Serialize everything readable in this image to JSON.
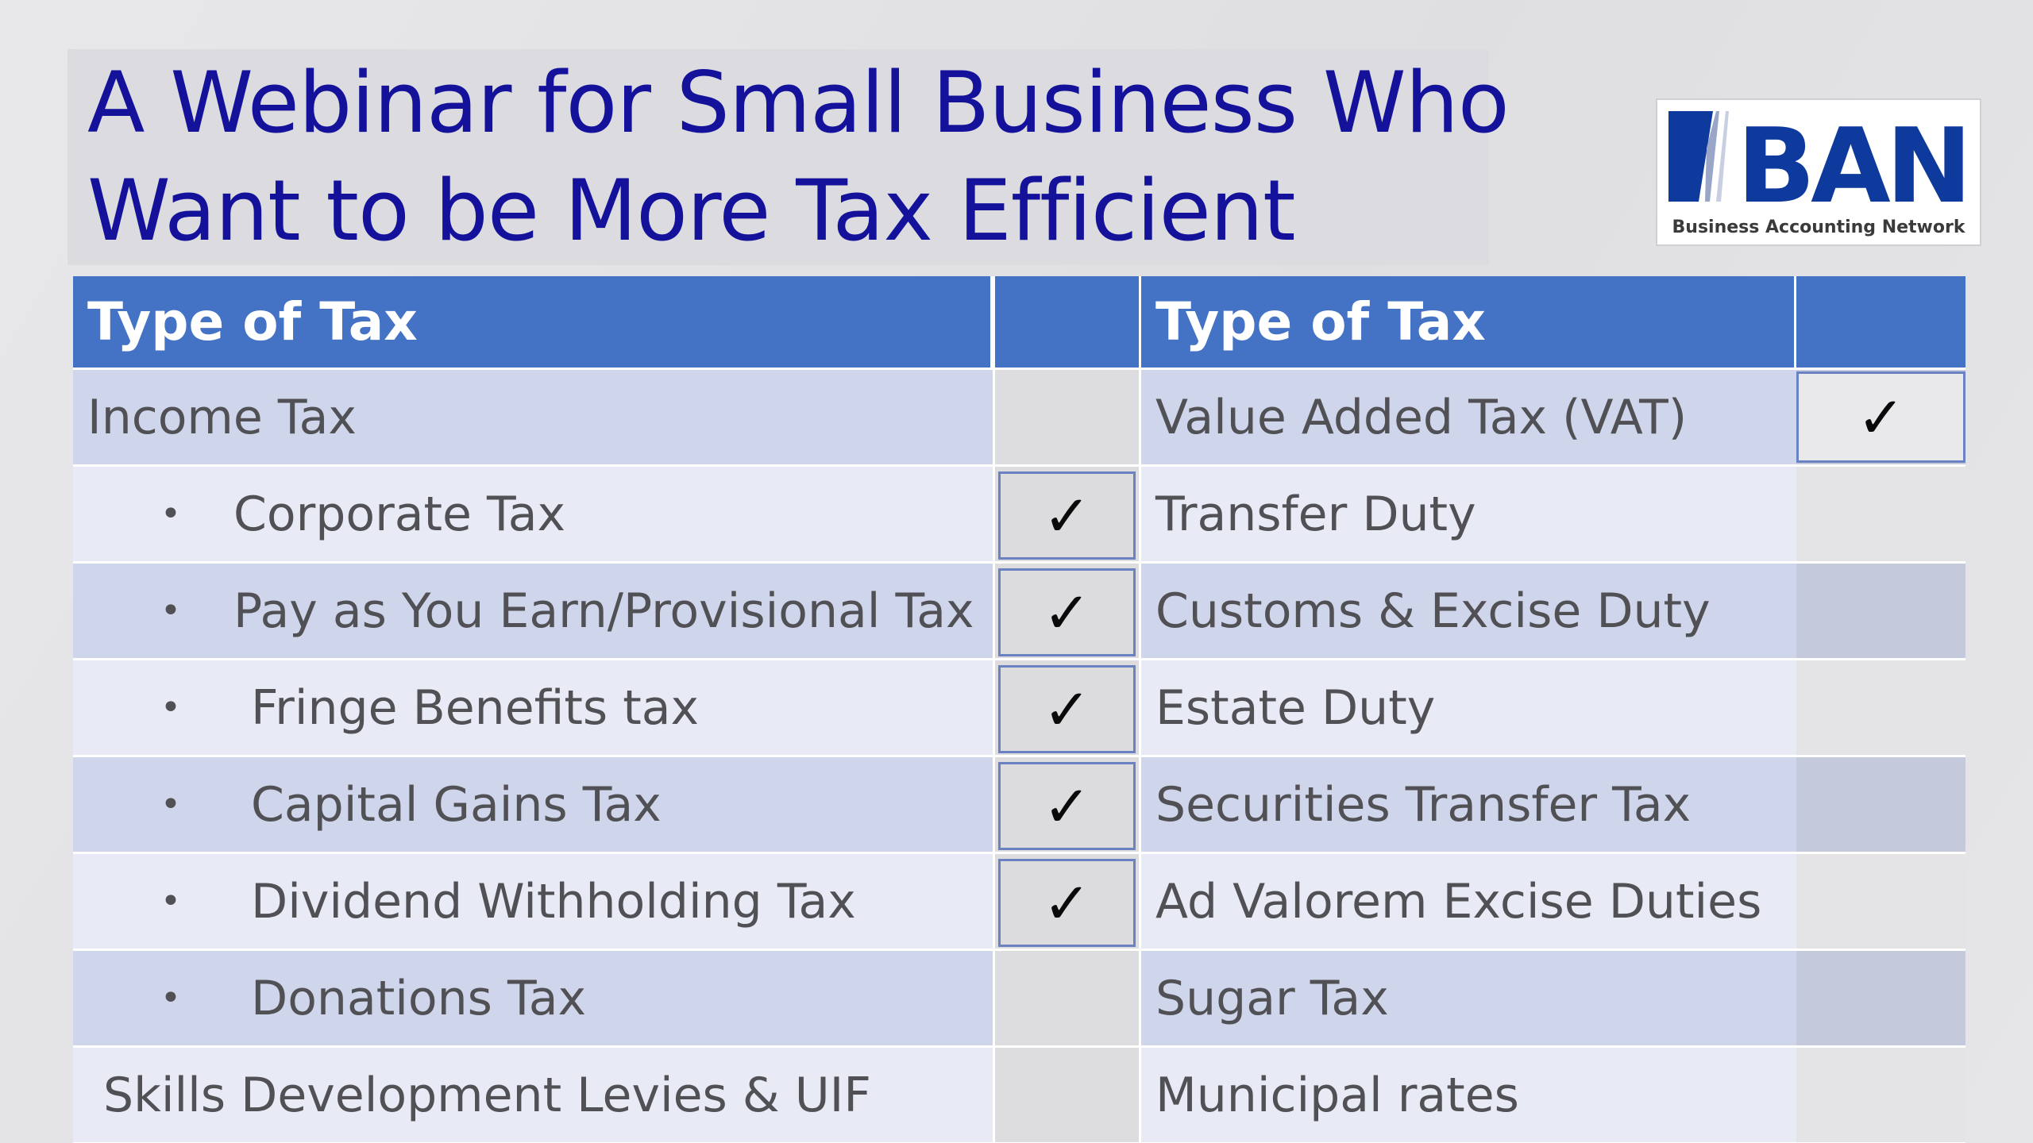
{
  "slide": {
    "title_line1": "A Webinar for Small Business Who",
    "title_line2": "Want to be More Tax Efficient",
    "title_color": "#14129a"
  },
  "logo": {
    "text": "BAN",
    "tagline": "Business Accounting Network",
    "color": "#0d3a9c"
  },
  "table": {
    "header_color": "#4472c4",
    "headers": [
      "Type of Tax",
      "",
      "Type of Tax",
      ""
    ],
    "check_symbol": "✓",
    "rows": [
      {
        "left": "Income Tax",
        "left_bullet": false,
        "left_checked": false,
        "right": "Value Added Tax (VAT)",
        "right_checked": true
      },
      {
        "left": "Corporate Tax",
        "left_bullet": true,
        "left_checked": true,
        "right": "Transfer Duty",
        "right_checked": false
      },
      {
        "left": "Pay as You Earn/Provisional Tax",
        "left_bullet": true,
        "left_checked": true,
        "right": "Customs & Excise Duty",
        "right_checked": false
      },
      {
        "left": "Fringe Benefits tax",
        "left_bullet": true,
        "left_checked": true,
        "right": "Estate Duty",
        "right_checked": false
      },
      {
        "left": "Capital Gains Tax",
        "left_bullet": true,
        "left_checked": true,
        "right": "Securities Transfer Tax",
        "right_checked": false
      },
      {
        "left": "Dividend Withholding Tax",
        "left_bullet": true,
        "left_checked": true,
        "right": "Ad Valorem Excise Duties",
        "right_checked": false
      },
      {
        "left": "Donations Tax",
        "left_bullet": true,
        "left_checked": false,
        "right": "Sugar Tax",
        "right_checked": false
      },
      {
        "left": "Skills Development Levies & UIF",
        "left_bullet": false,
        "left_checked": false,
        "right": "Municipal rates",
        "right_checked": false
      }
    ]
  }
}
